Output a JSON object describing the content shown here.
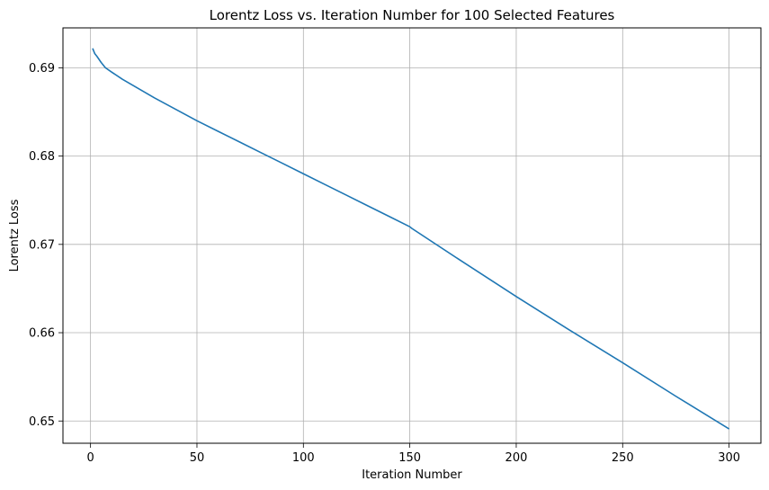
{
  "chart_data": {
    "type": "line",
    "title": "Lorentz Loss vs. Iteration Number for 100 Selected Features",
    "xlabel": "Iteration Number",
    "ylabel": "Lorentz Loss",
    "xlim": [
      -12.95,
      314.95
    ],
    "ylim": [
      0.64748,
      0.69452
    ],
    "xticks": [
      0,
      50,
      100,
      150,
      200,
      250,
      300
    ],
    "yticks": [
      0.65,
      0.66,
      0.67,
      0.68,
      0.69
    ],
    "ytick_labels": [
      "0.65",
      "0.66",
      "0.67",
      "0.68",
      "0.69"
    ],
    "grid": true,
    "line_color": "#1f77b4",
    "series": [
      {
        "x": [
          1,
          2,
          3,
          5,
          7,
          10,
          15,
          20,
          30,
          40,
          50,
          60,
          70,
          80,
          90,
          100,
          110,
          120,
          130,
          140,
          150,
          151,
          175,
          200,
          225,
          250,
          275,
          300
        ],
        "values": [
          0.6922,
          0.6916,
          0.6913,
          0.6906,
          0.69,
          0.6895,
          0.6887,
          0.688,
          0.6866,
          0.6853,
          0.684,
          0.6828,
          0.6816,
          0.6804,
          0.6792,
          0.678,
          0.6768,
          0.6756,
          0.6744,
          0.6732,
          0.672,
          0.6718,
          0.668,
          0.6641,
          0.6603,
          0.6566,
          0.6528,
          0.6491
        ]
      }
    ]
  }
}
